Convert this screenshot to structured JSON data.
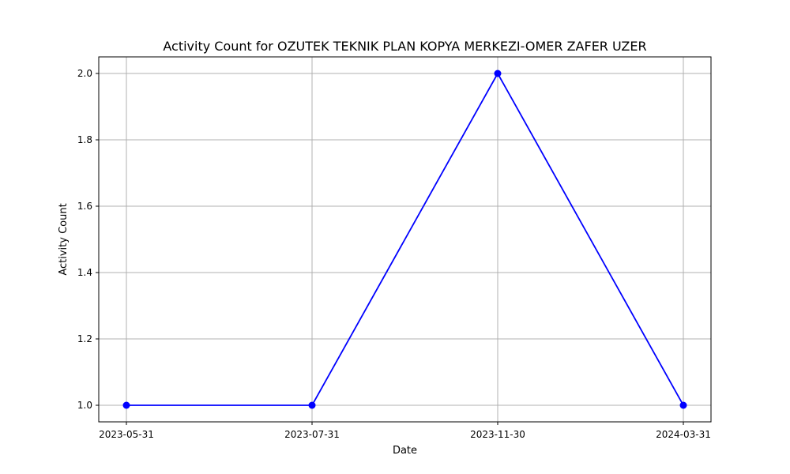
{
  "chart_data": {
    "type": "line",
    "title": "Activity Count for OZUTEK TEKNIK PLAN KOPYA MERKEZI-OMER ZAFER UZER",
    "xlabel": "Date",
    "ylabel": "Activity Count",
    "categories": [
      "2023-05-31",
      "2023-07-31",
      "2023-11-30",
      "2024-03-31"
    ],
    "series": [
      {
        "name": "Activity Count",
        "values": [
          1,
          1,
          2,
          1
        ]
      }
    ],
    "ylim": [
      0.95,
      2.05
    ],
    "yticks": [
      1.0,
      1.2,
      1.4,
      1.6,
      1.8,
      2.0
    ],
    "ytick_labels": [
      "1.0",
      "1.2",
      "1.4",
      "1.6",
      "1.8",
      "2.0"
    ],
    "grid": true,
    "line_color": "#0000ff",
    "marker": "circle"
  }
}
